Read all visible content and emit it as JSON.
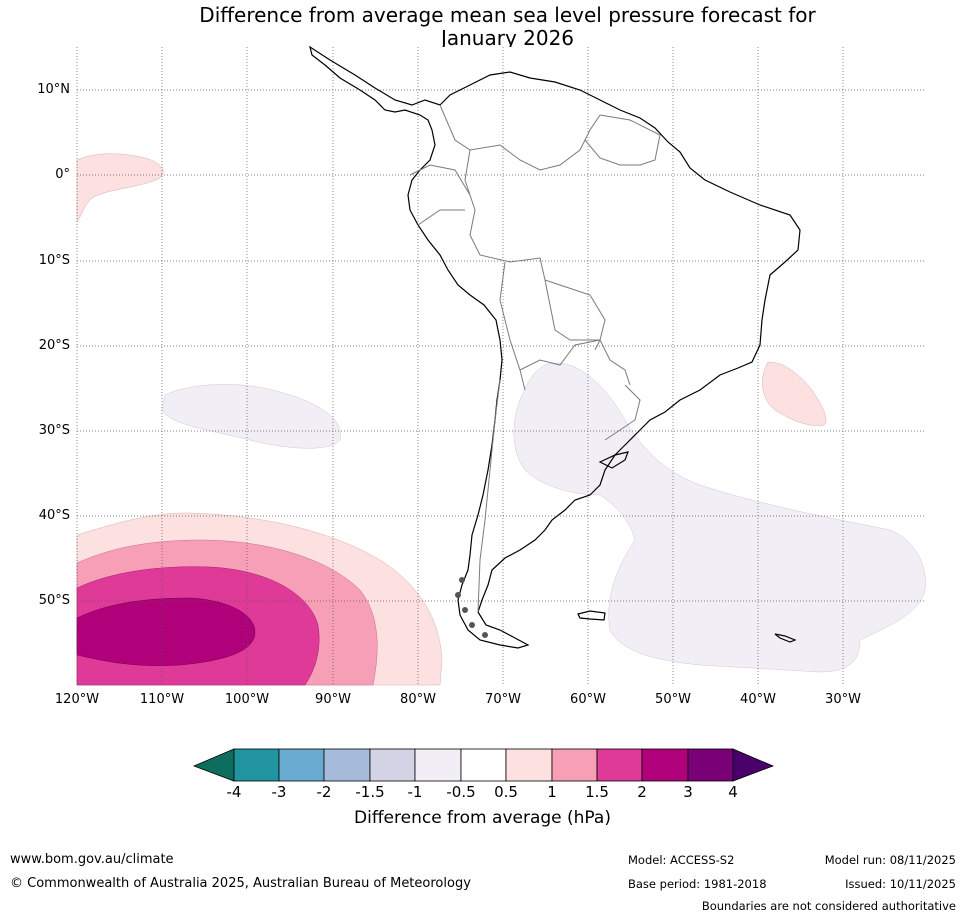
{
  "title_line1": "Difference from average mean sea level pressure forecast for",
  "title_line2": "January 2026",
  "lat_labels": [
    "10°N",
    "0°",
    "10°S",
    "20°S",
    "30°S",
    "40°S",
    "50°S"
  ],
  "lon_labels": [
    "120°W",
    "110°W",
    "100°W",
    "90°W",
    "80°W",
    "70°W",
    "60°W",
    "50°W",
    "40°W",
    "30°W"
  ],
  "colorbar": {
    "title": "Difference from average (hPa)",
    "ticks": [
      "-4",
      "-3",
      "-2",
      "-1.5",
      "-1",
      "-0.5",
      "0.5",
      "1",
      "1.5",
      "2",
      "3",
      "4"
    ],
    "colors": [
      "#0e6e5e",
      "#21959f",
      "#6aabd2",
      "#a6bada",
      "#d3d3e6",
      "#f2eef5",
      "#ffffff",
      "#fde0e0",
      "#f89fb8",
      "#e03a98",
      "#b0007a",
      "#7a0077",
      "#4a006b"
    ]
  },
  "footer": {
    "website": "www.bom.gov.au/climate",
    "copyright": "© Commonwealth of Australia 2025, Australian Bureau of Meteorology",
    "model": "Model: ACCESS-S2",
    "base_period": "Base period: 1981-2018",
    "model_run": "Model run: 08/11/2025",
    "issued": "Issued: 10/11/2025",
    "disclaimer": "Boundaries are not considered authoritative"
  }
}
